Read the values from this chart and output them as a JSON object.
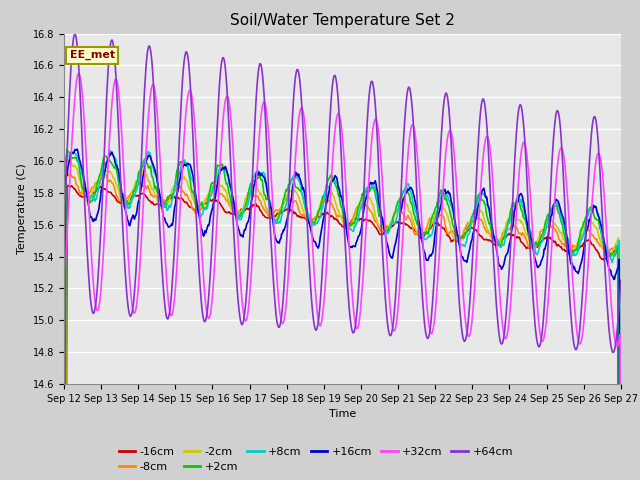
{
  "title": "Soil/Water Temperature Set 2",
  "xlabel": "Time",
  "ylabel": "Temperature (C)",
  "ylim": [
    14.6,
    16.8
  ],
  "tick_labels": [
    "Sep 12",
    "Sep 13",
    "Sep 14",
    "Sep 15",
    "Sep 16",
    "Sep 17",
    "Sep 18",
    "Sep 19",
    "Sep 20",
    "Sep 21",
    "Sep 22",
    "Sep 23",
    "Sep 24",
    "Sep 25",
    "Sep 26",
    "Sep 27"
  ],
  "series_labels": [
    "-16cm",
    "-8cm",
    "-2cm",
    "+2cm",
    "+8cm",
    "+16cm",
    "+32cm",
    "+64cm"
  ],
  "series_colors": [
    "#cc0000",
    "#ff8800",
    "#cccc00",
    "#00cc00",
    "#00cccc",
    "#0000cc",
    "#ff44ff",
    "#8833cc"
  ],
  "annotation_text": "EE_met",
  "annotation_color": "#8B0000",
  "annotation_bg": "#ffffcc",
  "annotation_border": "#999900",
  "bg_color": "#e8e8e8",
  "title_fontsize": 11,
  "ylabel_fontsize": 8,
  "xlabel_fontsize": 8,
  "tick_fontsize": 7,
  "legend_fontsize": 8,
  "n_points": 720,
  "n_days": 15
}
